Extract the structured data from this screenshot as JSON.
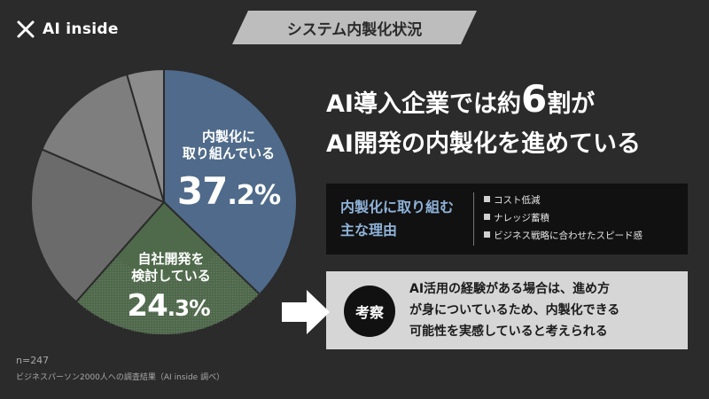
{
  "brand": {
    "logo_text": "AI inside"
  },
  "header": {
    "title": "システム内製化状況"
  },
  "chart_data": {
    "type": "pie",
    "title": "",
    "slices": [
      {
        "label": "内製化に取り組んでいる",
        "value": 37.2,
        "color": "#4f6a8a"
      },
      {
        "label": "自社開発を検討している",
        "value": 24.3,
        "color": "#4f6a4b"
      },
      {
        "label": "",
        "value": 20.0,
        "color": "#6b6b6b"
      },
      {
        "label": "",
        "value": 14.0,
        "color": "#7e7e7e"
      },
      {
        "label": "",
        "value": 4.5,
        "color": "#8c8c8c"
      }
    ],
    "start_angle_deg": 0,
    "direction": "clockwise",
    "labels": [
      {
        "line1": "内製化に",
        "line2": "取り組んでいる",
        "int": "37",
        "dec": ".2",
        "unit": "%"
      },
      {
        "line1": "自社開発を",
        "line2": "検討している",
        "int": "24",
        "dec": ".3",
        "unit": "%"
      }
    ]
  },
  "headline": {
    "line1_prefix": "AI導入企業では約",
    "line1_big": "6",
    "line1_suffix": "割が",
    "line2": "AI開発の内製化を進めている"
  },
  "reasons": {
    "title_line1": "内製化に取り組む",
    "title_line2": "主な理由",
    "items": [
      "コスト低減",
      "ナレッジ蓄積",
      "ビジネス戦略に合わせたスピード感"
    ]
  },
  "insight": {
    "badge": "考察",
    "line1": "AI活用の経験がある場合は、進め方",
    "line2": "が身についているため、内製化できる",
    "line3": "可能性を実感していると考えられる"
  },
  "footer": {
    "sample": "n=247",
    "source": "ビジネスパーソン2000人への調査結果（AI inside 調べ）"
  }
}
